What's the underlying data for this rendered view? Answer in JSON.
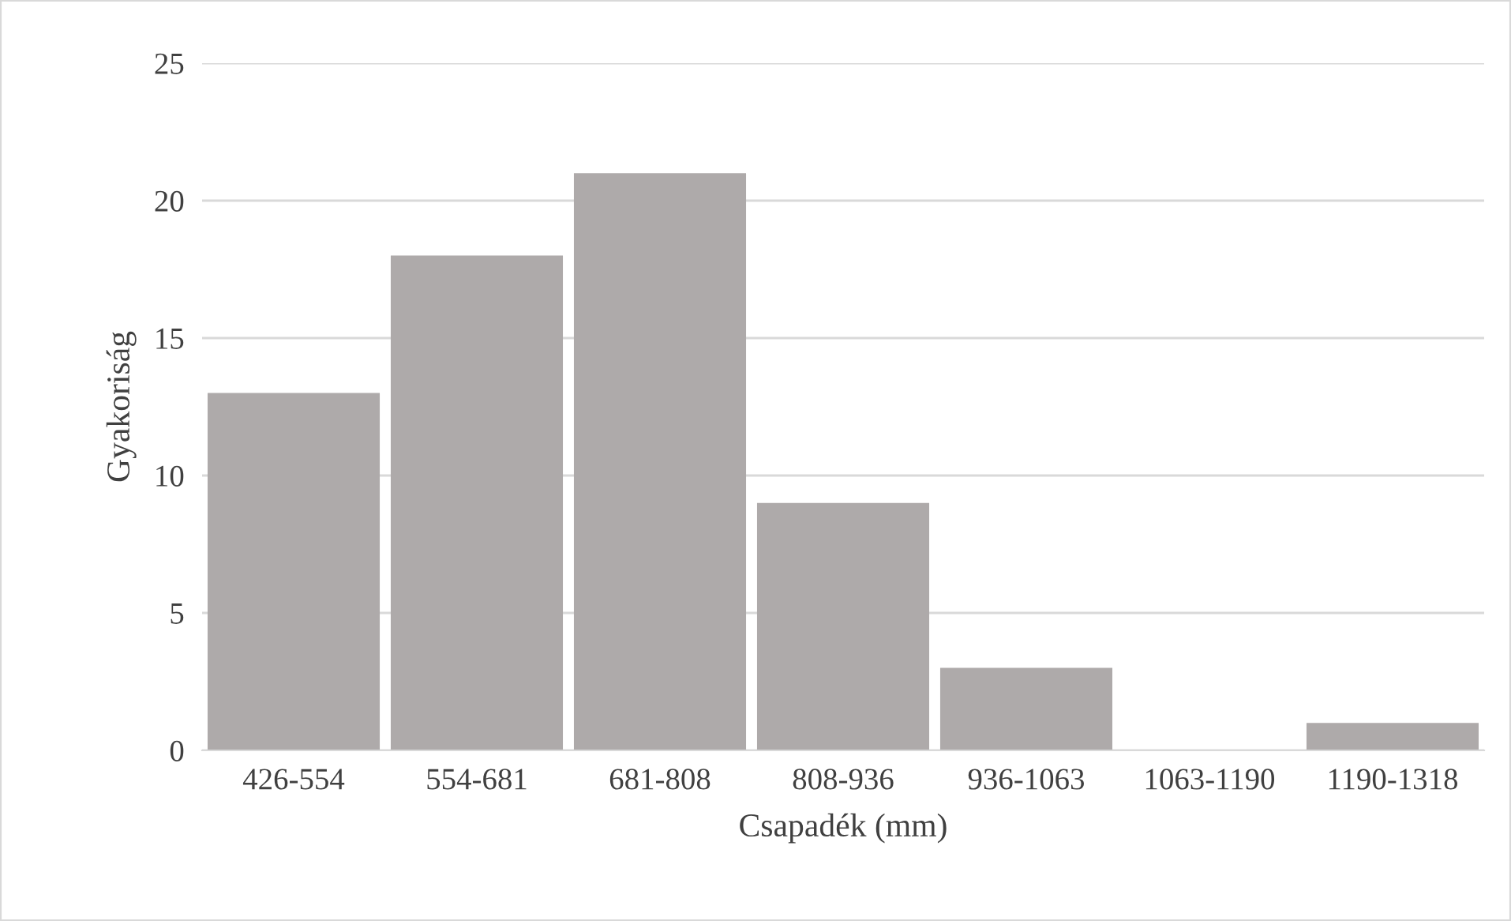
{
  "chart_data": {
    "type": "bar",
    "xlabel": "Csapadék (mm)",
    "ylabel": "Gyakoriság",
    "categories": [
      "426-554",
      "554-681",
      "681-808",
      "808-936",
      "936-1063",
      "1063-1190",
      "1190-1318"
    ],
    "values": [
      13,
      18,
      21,
      9,
      3,
      0,
      1
    ],
    "color": "#aeaaaa",
    "ylim": [
      0,
      25
    ],
    "yticks": [
      0,
      5,
      10,
      15,
      20,
      25
    ],
    "grid": "y",
    "legend": false
  }
}
